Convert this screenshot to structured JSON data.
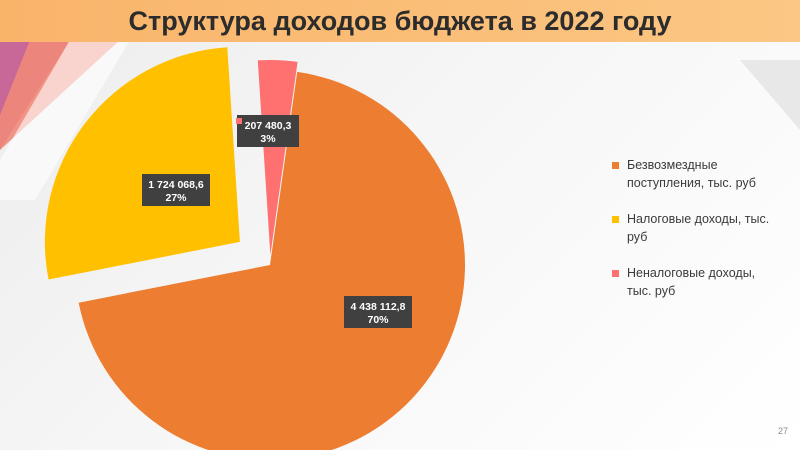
{
  "slide": {
    "title": "Структура доходов бюджета в 2022 году",
    "page_number": "27"
  },
  "chart_data": {
    "type": "pie",
    "exploded": true,
    "categories": [
      "Безвозмездные поступления, тыс. руб",
      "Налоговые доходы, тыс. руб",
      "Неналоговые доходы, тыс. руб"
    ],
    "values": [
      4438112.8,
      1724068.6,
      207480.3
    ],
    "value_labels": [
      "4 438 112,8",
      "1 724 068,6",
      "207 480,3"
    ],
    "percent_labels": [
      "70%",
      "27%",
      "3%"
    ],
    "colors": [
      "#ed7d31",
      "#ffc000",
      "#ff7070"
    ],
    "legend_position": "right"
  }
}
